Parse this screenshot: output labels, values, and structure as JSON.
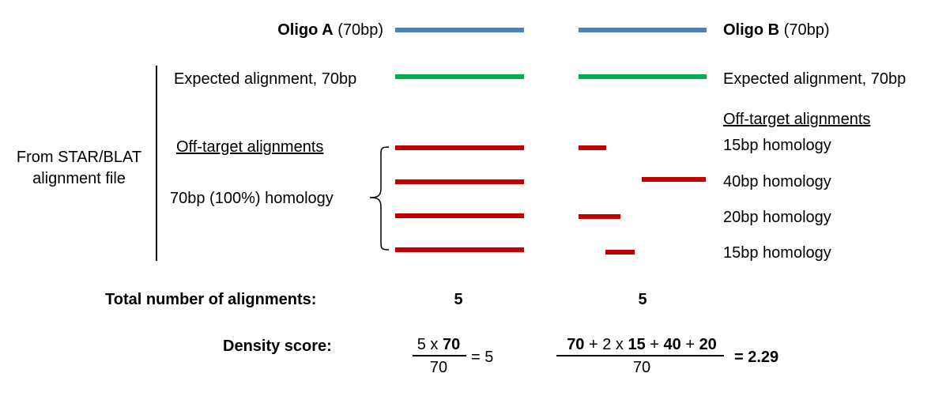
{
  "oligo_a": {
    "name": "Oligo A",
    "length": "(70bp)"
  },
  "oligo_b": {
    "name": "Oligo B",
    "length": "(70bp)"
  },
  "expected_label": "Expected alignment, 70bp",
  "source_label_line1": "From STAR/BLAT",
  "source_label_line2": "alignment file",
  "offtarget_label": "Off-target alignments",
  "oligo_a_homology": "70bp (100%) homology",
  "oligo_b_homologies": [
    "15bp homology",
    "40bp homology",
    "20bp homology",
    "15bp homology"
  ],
  "colors": {
    "oligo": "#4f81bd",
    "expected": "#00b050",
    "offtarget": "#c00000"
  },
  "totals": {
    "label": "Total number of alignments:",
    "oligo_a": "5",
    "oligo_b": "5"
  },
  "density": {
    "label": "Density score:",
    "a_num_prefix": "5 x ",
    "a_num_bold": "70",
    "a_den": "70",
    "a_result": "= 5",
    "b_num_p1": "70",
    "b_num_p2": " + 2 x ",
    "b_num_p3": "15",
    "b_num_p4": " + ",
    "b_num_p5": "40",
    "b_num_p6": " + ",
    "b_num_p7": "20",
    "b_den": "70",
    "b_result": "= 2.29"
  }
}
